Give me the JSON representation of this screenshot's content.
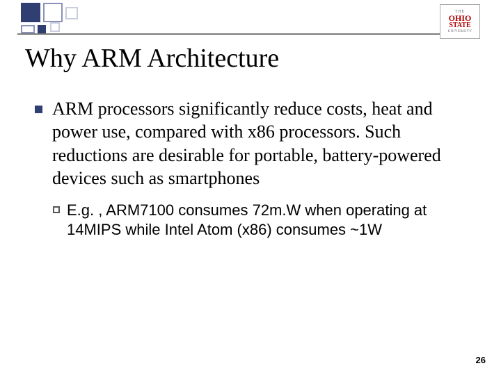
{
  "logo": {
    "line1": "THE",
    "line2": "OHIO",
    "line3": "STATE",
    "line4": "UNIVERSITY"
  },
  "title": "Why ARM Architecture",
  "bullet": {
    "text": "ARM processors significantly reduce costs, heat and power use, compared with x86 processors. Such reductions are desirable for portable, battery-powered devices such as smartphones"
  },
  "sub_bullet": {
    "lead": "E.g. , ",
    "rest": "ARM7100 consumes 72m.W when operating at 14MIPS while Intel Atom (x86) consumes ~1W"
  },
  "page_number": "26",
  "colors": {
    "accent": "#2f3f72",
    "logo_red": "#b00000",
    "line": "#7a7a7a"
  }
}
